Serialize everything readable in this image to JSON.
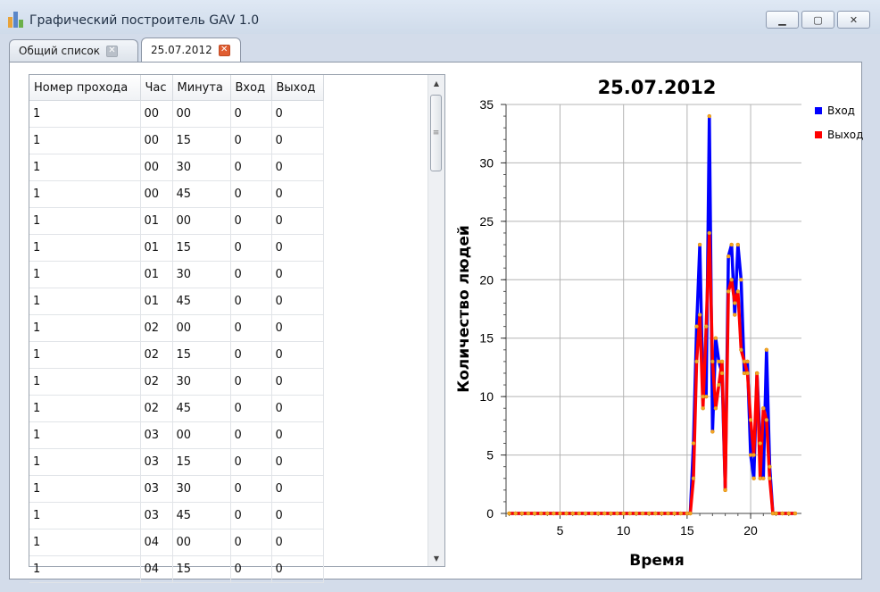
{
  "window": {
    "title": "Графический построитель GAV 1.0",
    "buttons": {
      "minimize": "▁",
      "maximize": "▢",
      "close": "✕"
    }
  },
  "tabs": [
    {
      "label": "Общий список",
      "close": "✕",
      "active": false
    },
    {
      "label": "25.07.2012",
      "close": "✕",
      "active": true
    }
  ],
  "table": {
    "columns": [
      "Номер прохода",
      "Час",
      "Минута",
      "Вход",
      "Выход"
    ],
    "rows": [
      [
        "1",
        "00",
        "00",
        "0",
        "0"
      ],
      [
        "1",
        "00",
        "15",
        "0",
        "0"
      ],
      [
        "1",
        "00",
        "30",
        "0",
        "0"
      ],
      [
        "1",
        "00",
        "45",
        "0",
        "0"
      ],
      [
        "1",
        "01",
        "00",
        "0",
        "0"
      ],
      [
        "1",
        "01",
        "15",
        "0",
        "0"
      ],
      [
        "1",
        "01",
        "30",
        "0",
        "0"
      ],
      [
        "1",
        "01",
        "45",
        "0",
        "0"
      ],
      [
        "1",
        "02",
        "00",
        "0",
        "0"
      ],
      [
        "1",
        "02",
        "15",
        "0",
        "0"
      ],
      [
        "1",
        "02",
        "30",
        "0",
        "0"
      ],
      [
        "1",
        "02",
        "45",
        "0",
        "0"
      ],
      [
        "1",
        "03",
        "00",
        "0",
        "0"
      ],
      [
        "1",
        "03",
        "15",
        "0",
        "0"
      ],
      [
        "1",
        "03",
        "30",
        "0",
        "0"
      ],
      [
        "1",
        "03",
        "45",
        "0",
        "0"
      ],
      [
        "1",
        "04",
        "00",
        "0",
        "0"
      ],
      [
        "1",
        "04",
        "15",
        "0",
        "0"
      ]
    ],
    "scroll_up": "▲",
    "scroll_down": "▼",
    "thumb_grip": "≡"
  },
  "chart_data": {
    "type": "line",
    "title": "25.07.2012",
    "xlabel": "Время",
    "ylabel": "Количество людей",
    "xlim": [
      0.75,
      24
    ],
    "ylim": [
      0,
      35
    ],
    "xticks": [
      5,
      10,
      15,
      20
    ],
    "yticks": [
      0,
      5,
      10,
      15,
      20,
      25,
      30,
      35
    ],
    "grid": true,
    "legend_position": "top-right",
    "series": [
      {
        "name": "Вход",
        "color": "#0000ff",
        "x": [
          1,
          1.5,
          2,
          2.5,
          3,
          3.5,
          4,
          4.5,
          5,
          5.5,
          6,
          6.5,
          7,
          7.5,
          8,
          8.5,
          9,
          9.5,
          10,
          10.5,
          11,
          11.5,
          12,
          12.5,
          13,
          13.5,
          14,
          14.5,
          15,
          15.25,
          15.5,
          15.75,
          16,
          16.25,
          16.5,
          16.75,
          17,
          17.25,
          17.5,
          17.75,
          18,
          18.25,
          18.5,
          18.75,
          19,
          19.25,
          19.5,
          19.75,
          20,
          20.25,
          20.5,
          20.75,
          21,
          21.25,
          21.5,
          21.75,
          22,
          22.5,
          23,
          23.5
        ],
        "y": [
          0,
          0,
          0,
          0,
          0,
          0,
          0,
          0,
          0,
          0,
          0,
          0,
          0,
          0,
          0,
          0,
          0,
          0,
          0,
          0,
          0,
          0,
          0,
          0,
          0,
          0,
          0,
          0,
          0,
          0,
          6,
          16,
          23,
          10,
          10,
          34,
          7,
          15,
          13,
          12,
          2,
          22,
          23,
          17,
          23,
          20,
          12,
          13,
          5,
          3,
          12,
          6,
          3,
          14,
          4,
          0,
          0,
          0,
          0,
          0
        ]
      },
      {
        "name": "Выход",
        "color": "#ff0000",
        "x": [
          1,
          1.5,
          2,
          2.5,
          3,
          3.5,
          4,
          4.5,
          5,
          5.5,
          6,
          6.5,
          7,
          7.5,
          8,
          8.5,
          9,
          9.5,
          10,
          10.5,
          11,
          11.5,
          12,
          12.5,
          13,
          13.5,
          14,
          14.5,
          15,
          15.25,
          15.5,
          15.75,
          16,
          16.25,
          16.5,
          16.75,
          17,
          17.25,
          17.5,
          17.75,
          18,
          18.25,
          18.5,
          18.75,
          19,
          19.25,
          19.5,
          19.75,
          20,
          20.25,
          20.5,
          20.75,
          21,
          21.25,
          21.5,
          21.75,
          22,
          22.5,
          23,
          23.5
        ],
        "y": [
          0,
          0,
          0,
          0,
          0,
          0,
          0,
          0,
          0,
          0,
          0,
          0,
          0,
          0,
          0,
          0,
          0,
          0,
          0,
          0,
          0,
          0,
          0,
          0,
          0,
          0,
          0,
          0,
          0,
          0,
          3,
          13,
          17,
          9,
          16,
          24,
          13,
          9,
          11,
          13,
          2,
          19,
          20,
          18,
          19,
          14,
          13,
          12,
          8,
          5,
          12,
          3,
          9,
          8,
          3,
          0,
          0,
          0,
          0,
          0
        ]
      }
    ]
  }
}
